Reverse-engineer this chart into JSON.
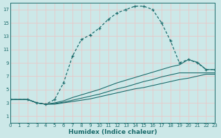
{
  "xlabel": "Humidex (Indice chaleur)",
  "bg_color": "#cce8e8",
  "grid_color": "#b8d8d8",
  "line_color": "#1a6b6b",
  "xlim": [
    0,
    23
  ],
  "ylim": [
    0,
    18
  ],
  "xticks": [
    0,
    1,
    2,
    3,
    4,
    5,
    6,
    7,
    8,
    9,
    10,
    11,
    12,
    13,
    14,
    15,
    16,
    17,
    18,
    19,
    20,
    21,
    22,
    23
  ],
  "yticks": [
    1,
    3,
    5,
    7,
    9,
    11,
    13,
    15,
    17
  ],
  "curve_main_x": [
    0,
    2,
    3,
    4,
    5,
    6,
    7,
    8,
    9,
    10,
    11,
    12,
    13,
    14,
    15,
    16,
    17,
    18,
    19,
    20,
    21,
    22,
    23
  ],
  "curve_main_y": [
    3.5,
    3.5,
    3.0,
    2.8,
    3.5,
    6.0,
    10.0,
    12.5,
    13.2,
    14.2,
    15.5,
    16.5,
    17.0,
    17.5,
    17.5,
    17.0,
    15.0,
    12.3,
    9.0,
    9.5,
    9.0,
    8.0,
    8.0
  ],
  "curve2_x": [
    0,
    2,
    3,
    4,
    5,
    6,
    7,
    8,
    9,
    10,
    11,
    12,
    13,
    14,
    15,
    16,
    17,
    18,
    19,
    20,
    21,
    22,
    23
  ],
  "curve2_y": [
    3.5,
    3.5,
    3.0,
    2.8,
    3.0,
    3.3,
    3.8,
    4.2,
    4.6,
    5.0,
    5.5,
    6.0,
    6.4,
    6.8,
    7.2,
    7.6,
    8.0,
    8.4,
    8.7,
    9.5,
    9.1,
    8.0,
    8.0
  ],
  "curve3_x": [
    0,
    2,
    3,
    4,
    5,
    6,
    7,
    8,
    9,
    10,
    11,
    12,
    13,
    14,
    15,
    16,
    17,
    18,
    19,
    20,
    21,
    22,
    23
  ],
  "curve3_y": [
    3.5,
    3.5,
    3.0,
    2.8,
    2.9,
    3.1,
    3.4,
    3.7,
    4.0,
    4.3,
    4.7,
    5.1,
    5.4,
    5.8,
    6.2,
    6.5,
    6.9,
    7.2,
    7.5,
    7.5,
    7.5,
    7.5,
    7.5
  ],
  "curve4_x": [
    0,
    2,
    3,
    4,
    5,
    6,
    7,
    8,
    9,
    10,
    11,
    12,
    13,
    14,
    15,
    16,
    17,
    18,
    19,
    20,
    21,
    22,
    23
  ],
  "curve4_y": [
    3.5,
    3.5,
    3.0,
    2.8,
    2.8,
    3.0,
    3.2,
    3.4,
    3.6,
    3.9,
    4.2,
    4.5,
    4.8,
    5.1,
    5.3,
    5.6,
    5.9,
    6.2,
    6.5,
    6.7,
    7.0,
    7.3,
    7.3
  ]
}
